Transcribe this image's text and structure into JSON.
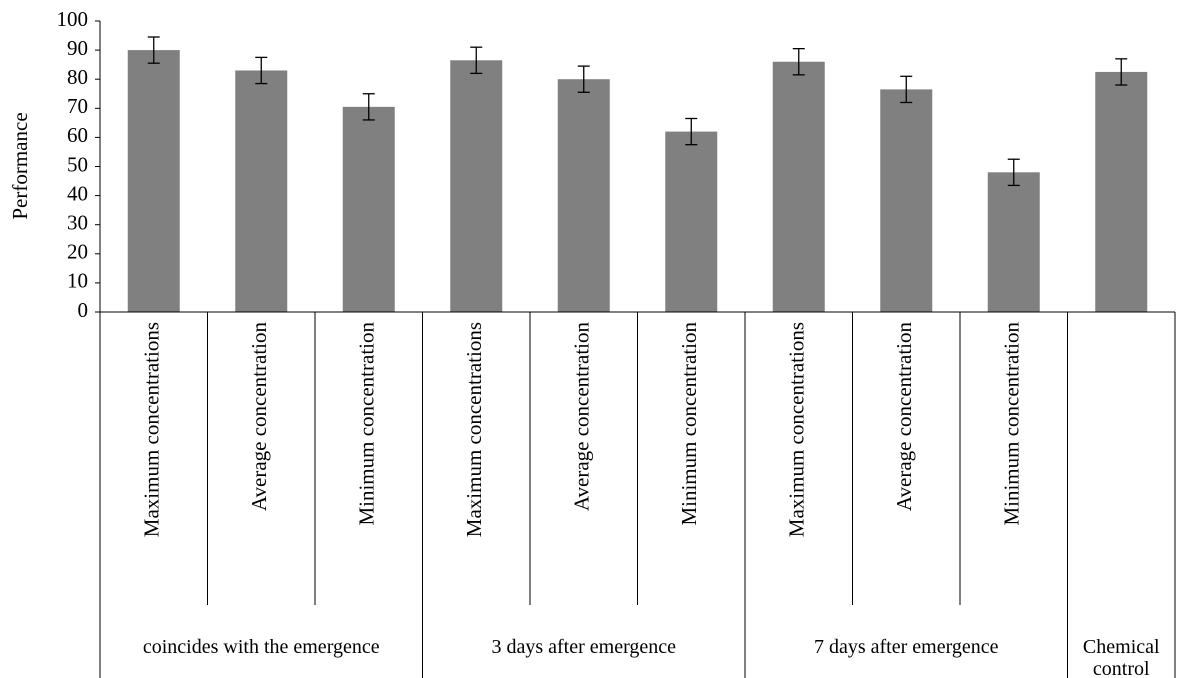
{
  "chart_data": {
    "type": "bar",
    "ylabel": "Performance",
    "categories": [
      "Maximum concentrations",
      "Average concentration",
      "Minimum concentration",
      "Maximum concentrations",
      "Average concentration",
      "Minimum concentration",
      "Maximum concentrations",
      "Average concentration",
      "Minimum concentration",
      null
    ],
    "groups": [
      {
        "label": "coincides with  the emergence",
        "span": 3
      },
      {
        "label": "3 days after emergence",
        "span": 3
      },
      {
        "label": "7 days after emergence",
        "span": 3
      },
      {
        "label": "Chemical control",
        "span": 1
      }
    ],
    "values": [
      90,
      83,
      70.5,
      86.5,
      80,
      62,
      86,
      76.5,
      48,
      82.5
    ],
    "errors": [
      4.5,
      4.5,
      4.5,
      4.5,
      4.5,
      4.5,
      4.5,
      4.5,
      4.5,
      4.5
    ],
    "color": "#808080",
    "ylim": [
      0,
      100
    ],
    "yticks": [
      0,
      10,
      20,
      30,
      40,
      50,
      60,
      70,
      80,
      90,
      100
    ],
    "grid": false
  }
}
